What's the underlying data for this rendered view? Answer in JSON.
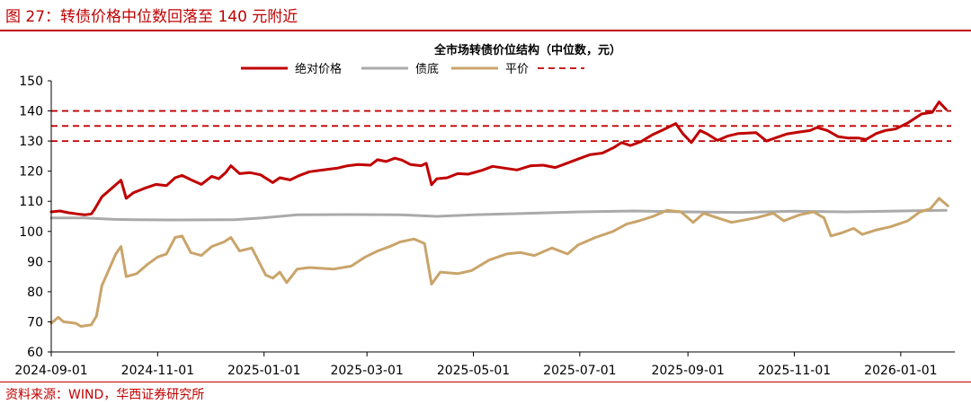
{
  "figure": {
    "title": "图 27：转债价格中位数回落至 140 元附近",
    "source": "资料来源：WIND，华西证券研究所"
  },
  "chart_data": {
    "type": "line",
    "title": "全市场转债价位结构（中位数，元）",
    "xlabel": "",
    "ylabel": "",
    "ylim": [
      60,
      150
    ],
    "yticks": [
      60,
      70,
      80,
      90,
      100,
      110,
      120,
      130,
      140,
      150
    ],
    "xlim": [
      "2024-09-01",
      "2026-02-01"
    ],
    "xticks": [
      "2024-09-01",
      "2024-11-01",
      "2025-01-01",
      "2025-03-01",
      "2025-05-01",
      "2025-07-01",
      "2025-09-01",
      "2025-11-01",
      "2026-01-01"
    ],
    "grid": false,
    "legend_position": "top-center",
    "reference_lines": [
      {
        "y": 140,
        "style": "dashed",
        "color": "#c00000"
      },
      {
        "y": 135,
        "style": "dashed",
        "color": "#c00000"
      },
      {
        "y": 130,
        "style": "dashed",
        "color": "#c00000"
      }
    ],
    "series": [
      {
        "name": "绝对价格",
        "color": "#c00000",
        "points": [
          [
            "2024-09-01",
            106.5
          ],
          [
            "2024-09-06",
            106.8
          ],
          [
            "2024-09-11",
            106.2
          ],
          [
            "2024-09-16",
            105.8
          ],
          [
            "2024-09-20",
            105.5
          ],
          [
            "2024-09-24",
            105.8
          ],
          [
            "2024-09-26",
            107.5
          ],
          [
            "2024-09-30",
            111.5
          ],
          [
            "2024-10-08",
            115.5
          ],
          [
            "2024-10-11",
            117.0
          ],
          [
            "2024-10-14",
            111.0
          ],
          [
            "2024-10-18",
            112.8
          ],
          [
            "2024-10-24",
            114.2
          ],
          [
            "2024-10-31",
            115.6
          ],
          [
            "2024-11-06",
            115.2
          ],
          [
            "2024-11-11",
            117.8
          ],
          [
            "2024-11-15",
            118.6
          ],
          [
            "2024-11-20",
            117.2
          ],
          [
            "2024-11-26",
            115.6
          ],
          [
            "2024-12-02",
            118.3
          ],
          [
            "2024-12-06",
            117.5
          ],
          [
            "2024-12-10",
            119.5
          ],
          [
            "2024-12-13",
            121.8
          ],
          [
            "2024-12-18",
            119.2
          ],
          [
            "2024-12-24",
            119.5
          ],
          [
            "2024-12-30",
            118.8
          ],
          [
            "2025-01-06",
            116.2
          ],
          [
            "2025-01-10",
            117.8
          ],
          [
            "2025-01-16",
            117.1
          ],
          [
            "2025-01-21",
            118.5
          ],
          [
            "2025-01-27",
            119.8
          ],
          [
            "2025-02-05",
            120.5
          ],
          [
            "2025-02-12",
            121.0
          ],
          [
            "2025-02-18",
            121.8
          ],
          [
            "2025-02-24",
            122.2
          ],
          [
            "2025-03-03",
            122.0
          ],
          [
            "2025-03-07",
            123.8
          ],
          [
            "2025-03-12",
            123.2
          ],
          [
            "2025-03-17",
            124.3
          ],
          [
            "2025-03-21",
            123.7
          ],
          [
            "2025-03-26",
            122.2
          ],
          [
            "2025-04-01",
            121.8
          ],
          [
            "2025-04-04",
            122.6
          ],
          [
            "2025-04-07",
            115.5
          ],
          [
            "2025-04-10",
            117.5
          ],
          [
            "2025-04-16",
            117.8
          ],
          [
            "2025-04-22",
            119.2
          ],
          [
            "2025-04-28",
            119.0
          ],
          [
            "2025-05-06",
            120.3
          ],
          [
            "2025-05-12",
            121.6
          ],
          [
            "2025-05-19",
            121.0
          ],
          [
            "2025-05-26",
            120.4
          ],
          [
            "2025-06-03",
            121.8
          ],
          [
            "2025-06-10",
            122.0
          ],
          [
            "2025-06-17",
            121.2
          ],
          [
            "2025-06-23",
            122.5
          ],
          [
            "2025-06-30",
            124.0
          ],
          [
            "2025-07-07",
            125.5
          ],
          [
            "2025-07-14",
            126.0
          ],
          [
            "2025-07-21",
            128.0
          ],
          [
            "2025-07-25",
            129.5
          ],
          [
            "2025-07-30",
            128.5
          ],
          [
            "2025-08-05",
            129.8
          ],
          [
            "2025-08-12",
            132.2
          ],
          [
            "2025-08-18",
            133.8
          ],
          [
            "2025-08-25",
            135.8
          ],
          [
            "2025-08-29",
            132.5
          ],
          [
            "2025-09-03",
            129.5
          ],
          [
            "2025-09-08",
            133.5
          ],
          [
            "2025-09-12",
            132.4
          ],
          [
            "2025-09-18",
            130.2
          ],
          [
            "2025-09-24",
            131.7
          ],
          [
            "2025-09-30",
            132.5
          ],
          [
            "2025-10-10",
            132.8
          ],
          [
            "2025-10-16",
            130.0
          ],
          [
            "2025-10-22",
            131.2
          ],
          [
            "2025-10-28",
            132.4
          ],
          [
            "2025-11-04",
            133.0
          ],
          [
            "2025-11-10",
            133.5
          ],
          [
            "2025-11-14",
            134.5
          ],
          [
            "2025-11-20",
            133.5
          ],
          [
            "2025-11-26",
            131.5
          ],
          [
            "2025-12-02",
            131.0
          ],
          [
            "2025-12-08",
            131.0
          ],
          [
            "2025-12-12",
            130.5
          ],
          [
            "2025-12-18",
            132.5
          ],
          [
            "2025-12-23",
            133.5
          ],
          [
            "2025-12-29",
            134.0
          ],
          [
            "2026-01-05",
            136.0
          ],
          [
            "2026-01-09",
            137.5
          ],
          [
            "2026-01-13",
            139.0
          ],
          [
            "2026-01-19",
            139.5
          ],
          [
            "2026-01-23",
            143.0
          ],
          [
            "2026-01-27",
            140.5
          ]
        ]
      },
      {
        "name": "债底",
        "color": "#aaaaaa",
        "points": [
          [
            "2024-09-01",
            104.5
          ],
          [
            "2024-09-20",
            104.5
          ],
          [
            "2024-10-08",
            104.0
          ],
          [
            "2024-10-20",
            103.9
          ],
          [
            "2024-11-10",
            103.8
          ],
          [
            "2024-12-15",
            103.9
          ],
          [
            "2024-12-31",
            104.5
          ],
          [
            "2025-01-20",
            105.5
          ],
          [
            "2025-02-20",
            105.6
          ],
          [
            "2025-03-20",
            105.5
          ],
          [
            "2025-04-10",
            105.0
          ],
          [
            "2025-05-01",
            105.5
          ],
          [
            "2025-06-01",
            106.0
          ],
          [
            "2025-07-01",
            106.5
          ],
          [
            "2025-08-01",
            106.8
          ],
          [
            "2025-09-01",
            106.5
          ],
          [
            "2025-10-01",
            106.3
          ],
          [
            "2025-11-01",
            106.7
          ],
          [
            "2025-12-01",
            106.5
          ],
          [
            "2026-01-01",
            106.8
          ],
          [
            "2026-01-27",
            107.0
          ]
        ]
      },
      {
        "name": "平价",
        "color": "#c9a46a",
        "points": [
          [
            "2024-09-01",
            69.5
          ],
          [
            "2024-09-05",
            71.5
          ],
          [
            "2024-09-08",
            70.0
          ],
          [
            "2024-09-15",
            69.5
          ],
          [
            "2024-09-18",
            68.5
          ],
          [
            "2024-09-24",
            69.0
          ],
          [
            "2024-09-27",
            72.0
          ],
          [
            "2024-09-30",
            82.0
          ],
          [
            "2024-10-08",
            92.5
          ],
          [
            "2024-10-11",
            95.0
          ],
          [
            "2024-10-14",
            85.0
          ],
          [
            "2024-10-20",
            86.0
          ],
          [
            "2024-10-26",
            89.0
          ],
          [
            "2024-11-01",
            91.5
          ],
          [
            "2024-11-06",
            92.5
          ],
          [
            "2024-11-11",
            98.0
          ],
          [
            "2024-11-15",
            98.5
          ],
          [
            "2024-11-20",
            93.0
          ],
          [
            "2024-11-26",
            92.0
          ],
          [
            "2024-12-02",
            95.0
          ],
          [
            "2024-12-09",
            96.5
          ],
          [
            "2024-12-13",
            98.0
          ],
          [
            "2024-12-18",
            93.5
          ],
          [
            "2024-12-25",
            94.5
          ],
          [
            "2025-01-02",
            85.5
          ],
          [
            "2025-01-06",
            84.5
          ],
          [
            "2025-01-10",
            86.5
          ],
          [
            "2025-01-14",
            83.0
          ],
          [
            "2025-01-20",
            87.5
          ],
          [
            "2025-01-27",
            88.0
          ],
          [
            "2025-02-10",
            87.5
          ],
          [
            "2025-02-20",
            88.5
          ],
          [
            "2025-02-28",
            91.5
          ],
          [
            "2025-03-07",
            93.5
          ],
          [
            "2025-03-14",
            95.0
          ],
          [
            "2025-03-20",
            96.5
          ],
          [
            "2025-03-28",
            97.5
          ],
          [
            "2025-04-03",
            96.0
          ],
          [
            "2025-04-07",
            82.5
          ],
          [
            "2025-04-12",
            86.5
          ],
          [
            "2025-04-22",
            86.0
          ],
          [
            "2025-04-30",
            87.0
          ],
          [
            "2025-05-10",
            90.5
          ],
          [
            "2025-05-20",
            92.5
          ],
          [
            "2025-05-28",
            93.0
          ],
          [
            "2025-06-05",
            92.0
          ],
          [
            "2025-06-15",
            94.5
          ],
          [
            "2025-06-24",
            92.5
          ],
          [
            "2025-06-30",
            95.5
          ],
          [
            "2025-07-10",
            98.0
          ],
          [
            "2025-07-20",
            100.0
          ],
          [
            "2025-07-28",
            102.5
          ],
          [
            "2025-08-04",
            103.5
          ],
          [
            "2025-08-12",
            105.0
          ],
          [
            "2025-08-20",
            107.0
          ],
          [
            "2025-08-28",
            106.5
          ],
          [
            "2025-09-04",
            103.0
          ],
          [
            "2025-09-10",
            106.0
          ],
          [
            "2025-09-18",
            104.5
          ],
          [
            "2025-09-26",
            103.0
          ],
          [
            "2025-10-10",
            104.5
          ],
          [
            "2025-10-20",
            106.0
          ],
          [
            "2025-10-26",
            103.5
          ],
          [
            "2025-11-04",
            105.5
          ],
          [
            "2025-11-12",
            106.5
          ],
          [
            "2025-11-18",
            104.5
          ],
          [
            "2025-11-22",
            98.5
          ],
          [
            "2025-11-28",
            99.5
          ],
          [
            "2025-12-05",
            101.0
          ],
          [
            "2025-12-10",
            99.0
          ],
          [
            "2025-12-18",
            100.5
          ],
          [
            "2025-12-26",
            101.5
          ],
          [
            "2026-01-05",
            103.5
          ],
          [
            "2026-01-12",
            106.5
          ],
          [
            "2026-01-18",
            107.5
          ],
          [
            "2026-01-23",
            111.0
          ],
          [
            "2026-01-28",
            108.5
          ]
        ]
      }
    ]
  }
}
